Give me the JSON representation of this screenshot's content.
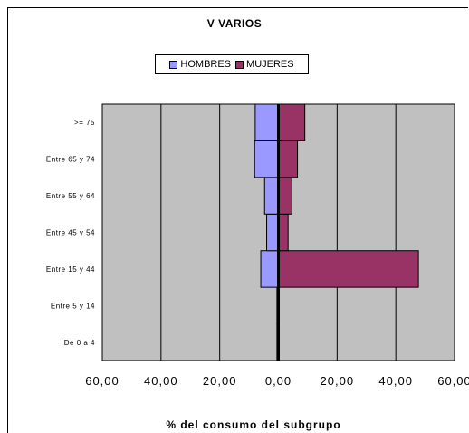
{
  "chart_data": {
    "type": "bar",
    "orientation": "horizontal",
    "title": "V VARIOS",
    "xlabel": "% del consumo del subgrupo",
    "ylabel": "",
    "categories": [
      "De 0 a 4",
      "Entre 5 y 14",
      "Entre 15 y 44",
      "Entre 45 y 54",
      "Entre 55 y 64",
      "Entre 65 y 74",
      ">= 75"
    ],
    "series": [
      {
        "name": "HOMBRES",
        "color": "#9999ff",
        "values": [
          -0.5,
          -0.5,
          -6.0,
          -4.0,
          -4.7,
          -8.1,
          -7.9
        ]
      },
      {
        "name": "MUJERES",
        "color": "#993366",
        "values": [
          0.0,
          0.0,
          47.7,
          3.3,
          4.6,
          6.5,
          9.0
        ]
      }
    ],
    "xlim": [
      -60,
      60
    ],
    "xticks": [
      "60,00",
      "40,00",
      "20,00",
      "0,00",
      "20,00",
      "40,00",
      "60,00"
    ],
    "xtick_values": [
      -60,
      -40,
      -20,
      0,
      20,
      40,
      60
    ],
    "legend_position": "top",
    "grid": true,
    "plot_background": "#c0c0c0"
  }
}
